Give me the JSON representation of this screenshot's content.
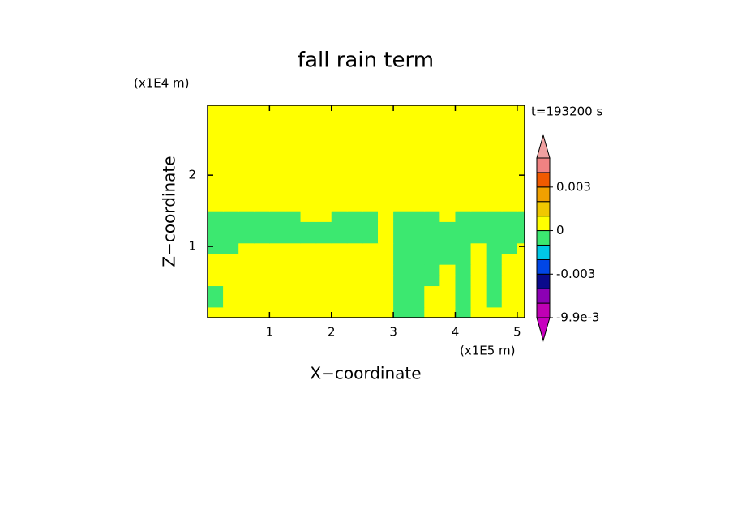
{
  "chart_data": {
    "type": "contour",
    "title": "fall rain term",
    "xlabel": "X−coordinate",
    "ylabel": "Z−coordinate",
    "xunit": "(x1E5 m)",
    "yunit": "(x1E4 m)",
    "time_label": "t=193200 s",
    "xlim": [
      0,
      5.12
    ],
    "ylim": [
      0,
      2.98
    ],
    "xticks": [
      1,
      2,
      3,
      4,
      5
    ],
    "yticks": [
      1,
      2
    ],
    "field": {
      "x": [
        0.125,
        0.375,
        0.625,
        0.875,
        1.125,
        1.375,
        1.625,
        1.875,
        2.125,
        2.375,
        2.625,
        2.875,
        3.125,
        3.375,
        3.625,
        3.875,
        4.125,
        4.375,
        4.625,
        4.875,
        5.125
      ],
      "z": [
        0.075,
        0.225,
        0.375,
        0.525,
        0.675,
        0.825,
        0.975,
        1.125,
        1.275,
        1.425,
        1.575,
        1.725,
        1.875,
        2.025,
        2.175,
        2.325,
        2.475,
        2.625,
        2.775,
        2.925
      ],
      "values": [
        [
          0,
          0,
          0,
          0,
          0,
          0,
          0,
          0,
          0,
          0,
          0,
          0,
          -0.0005,
          -0.0005,
          0,
          0,
          -0.0005,
          0,
          0,
          0,
          0
        ],
        [
          -0.0005,
          0,
          0,
          0,
          0,
          0,
          0,
          0,
          0,
          0,
          0,
          0,
          -0.0005,
          -0.0005,
          0,
          0,
          -0.0005,
          0,
          -0.0005,
          0,
          0
        ],
        [
          -0.0005,
          0,
          0,
          0,
          0,
          0,
          0,
          0,
          0,
          0,
          0,
          0,
          -0.0005,
          -0.0005,
          0,
          0,
          -0.0005,
          0,
          -0.0005,
          0,
          0
        ],
        [
          0,
          0,
          0,
          0,
          0,
          0,
          0,
          0,
          0,
          0,
          0,
          0,
          -0.0005,
          -0.0005,
          -0.0005,
          0,
          -0.0005,
          0,
          -0.0005,
          0,
          0
        ],
        [
          0,
          0,
          0,
          0,
          0,
          0,
          0,
          0,
          0,
          0,
          0,
          0,
          -0.0005,
          -0.0005,
          -0.0005,
          0,
          -0.0005,
          0,
          -0.0005,
          0,
          0
        ],
        [
          0,
          0,
          0,
          0,
          0,
          0,
          0,
          0,
          0,
          0,
          0,
          0,
          -0.0005,
          -0.0005,
          -0.0005,
          -0.0005,
          -0.0005,
          0,
          -0.0005,
          0,
          0
        ],
        [
          -0.0005,
          -0.0005,
          0,
          0,
          0,
          0,
          0,
          0,
          0,
          0,
          0,
          0,
          -0.0005,
          -0.0005,
          -0.0005,
          -0.0005,
          -0.0005,
          0,
          -0.0005,
          -0.0005,
          0
        ],
        [
          -0.0005,
          -0.0005,
          -0.0005,
          -0.0005,
          -0.0005,
          -0.0005,
          -0.0005,
          -0.0005,
          -0.0005,
          -0.0005,
          -0.0005,
          0,
          -0.0005,
          -0.0005,
          -0.0005,
          -0.0005,
          -0.0005,
          -0.0005,
          -0.0005,
          -0.0005,
          -0.0005
        ],
        [
          -0.0005,
          -0.0005,
          -0.0005,
          -0.0005,
          -0.0005,
          -0.0005,
          -0.0005,
          -0.0005,
          -0.0005,
          -0.0005,
          -0.0005,
          0,
          -0.0005,
          -0.0005,
          -0.0005,
          -0.0005,
          -0.0005,
          -0.0005,
          -0.0005,
          -0.0005,
          -0.0005
        ],
        [
          -0.0005,
          -0.0005,
          -0.0005,
          -0.0005,
          -0.0005,
          -0.0005,
          0,
          0,
          -0.0005,
          -0.0005,
          -0.0005,
          0,
          -0.0005,
          -0.0005,
          -0.0005,
          0,
          -0.0005,
          -0.0005,
          -0.0005,
          -0.0005,
          -0.0005
        ],
        [
          0,
          0,
          0,
          0,
          0,
          0,
          0,
          0,
          0,
          0,
          0,
          0,
          0,
          0,
          0,
          0,
          0,
          0,
          0,
          0,
          0
        ],
        [
          0,
          0,
          0,
          0,
          0,
          0,
          0,
          0,
          0,
          0,
          0,
          0,
          0,
          0,
          0,
          0,
          0,
          0,
          0,
          0,
          0
        ],
        [
          0,
          0,
          0,
          0,
          0,
          0,
          0,
          0,
          0,
          0,
          0,
          0,
          0,
          0,
          0,
          0,
          0,
          0,
          0,
          0,
          0
        ],
        [
          0,
          0,
          0,
          0,
          0,
          0,
          0,
          0,
          0,
          0,
          0,
          0,
          0,
          0,
          0,
          0,
          0,
          0,
          0,
          0,
          0
        ],
        [
          0,
          0,
          0,
          0,
          0,
          0,
          0,
          0,
          0,
          0,
          0,
          0,
          0,
          0,
          0,
          0,
          0,
          0,
          0,
          0,
          0
        ],
        [
          0,
          0,
          0,
          0,
          0,
          0,
          0,
          0,
          0,
          0,
          0,
          0,
          0,
          0,
          0,
          0,
          0,
          0,
          0,
          0,
          0
        ],
        [
          0,
          0,
          0,
          0,
          0,
          0,
          0,
          0,
          0,
          0,
          0,
          0,
          0,
          0,
          0,
          0,
          0,
          0,
          0,
          0,
          0
        ],
        [
          0,
          0,
          0,
          0,
          0,
          0,
          0,
          0,
          0,
          0,
          0,
          0,
          0,
          0,
          0,
          0,
          0,
          0,
          0,
          0,
          0
        ],
        [
          0,
          0,
          0,
          0,
          0,
          0,
          0,
          0,
          0,
          0,
          0,
          0,
          0,
          0,
          0,
          0,
          0,
          0,
          0,
          0,
          0
        ],
        [
          0,
          0,
          0,
          0,
          0,
          0,
          0,
          0,
          0,
          0,
          0,
          0,
          0,
          0,
          0,
          0,
          0,
          0,
          0,
          0,
          0
        ]
      ]
    },
    "colorbar": {
      "levels": [
        -0.0099,
        -0.0066,
        -0.004,
        -0.003,
        -0.002,
        -0.001,
        0,
        0.001,
        0.002,
        0.003,
        0.004,
        0.005
      ],
      "colors": [
        "#c800c0",
        "#c000b4",
        "#8c00b4",
        "#0a0a8c",
        "#0046e6",
        "#00c8e6",
        "#3ce870",
        "#ffff00",
        "#f0c800",
        "#f0a000",
        "#f05a00",
        "#f08282",
        "#f0a0a0"
      ],
      "ticks": [
        {
          "value": 0.003,
          "label": "0.003"
        },
        0,
        {
          "value": -0.003,
          "label": "-0.003"
        },
        {
          "value": -0.0099,
          "label": "-9.9e-3"
        }
      ]
    }
  }
}
